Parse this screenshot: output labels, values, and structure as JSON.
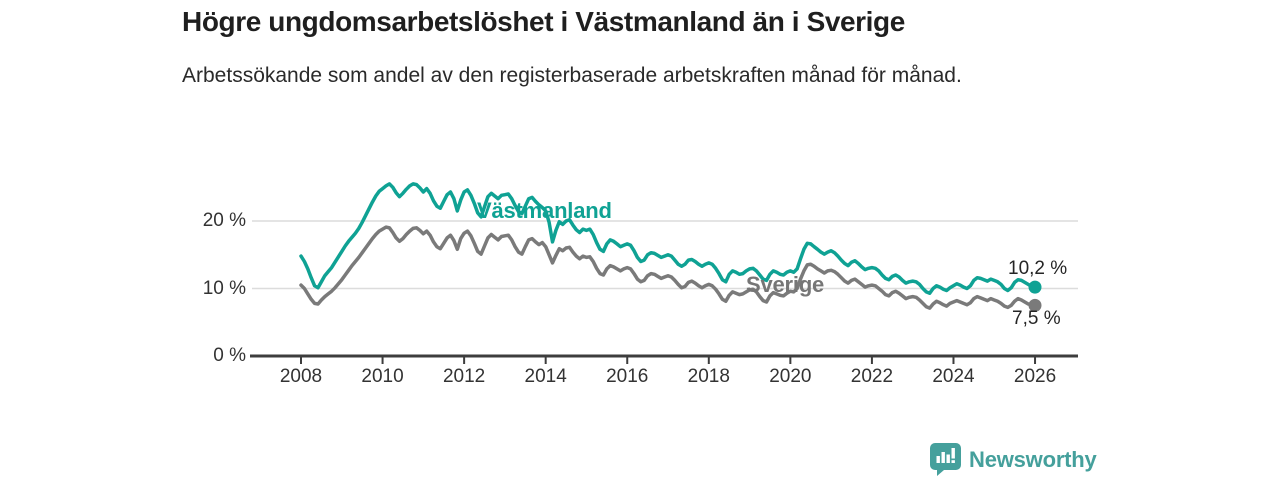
{
  "header": {
    "title": "Högre ungdomsarbetslöshet i Västmanland än i Sverige",
    "subtitle": "Arbetssökande som andel av den registerbaserade arbetskraften månad för månad."
  },
  "chart_data": {
    "type": "line",
    "title": "Högre ungdomsarbetslöshet i Västmanland än i Sverige",
    "xlabel": "",
    "ylabel": "Arbetssökande som andel av den registerbaserade arbetskraften",
    "unit": "%",
    "x_start": "2008-01",
    "x_end": "2026-01",
    "frequency": "monthly",
    "xlim": [
      2008,
      2026
    ],
    "ylim": [
      0,
      27.5
    ],
    "grid": "horizontal",
    "x_ticks": [
      2008,
      2010,
      2012,
      2014,
      2016,
      2018,
      2020,
      2022,
      2024,
      2026
    ],
    "x_tick_labels": [
      "2008",
      "2010",
      "2012",
      "2014",
      "2016",
      "2018",
      "2020",
      "2022",
      "2024",
      "2026"
    ],
    "y_ticks": [
      20,
      10,
      0
    ],
    "y_tick_labels": [
      "20 %",
      "10 %",
      "0 %"
    ],
    "legend_position": "inline-labels",
    "series": [
      {
        "name": "Västmanland",
        "color": "#0fa294",
        "end_value": 10.2,
        "end_label": "10,2 %",
        "values": [
          14.8,
          14.0,
          12.9,
          11.6,
          10.4,
          10.1,
          11.0,
          11.9,
          12.5,
          13.1,
          13.9,
          14.7,
          15.5,
          16.3,
          17.0,
          17.6,
          18.2,
          18.9,
          19.8,
          20.8,
          21.8,
          22.8,
          23.7,
          24.4,
          24.8,
          25.2,
          25.5,
          25.0,
          24.2,
          23.6,
          24.1,
          24.7,
          25.2,
          25.5,
          25.4,
          24.9,
          24.3,
          24.8,
          24.1,
          23.0,
          22.2,
          21.9,
          22.9,
          23.9,
          24.3,
          23.3,
          21.5,
          23.1,
          24.3,
          24.6,
          23.8,
          22.6,
          21.2,
          20.6,
          22.1,
          23.6,
          24.1,
          23.7,
          23.3,
          23.8,
          23.9,
          24.0,
          23.3,
          22.3,
          21.4,
          21.1,
          22.2,
          23.3,
          23.5,
          22.9,
          22.4,
          22.0,
          21.5,
          19.8,
          16.9,
          18.6,
          19.9,
          19.5,
          20.0,
          20.2,
          19.4,
          18.7,
          18.3,
          18.8,
          18.6,
          18.8,
          18.0,
          16.8,
          15.8,
          15.5,
          16.6,
          17.2,
          17.0,
          16.6,
          16.2,
          16.4,
          16.6,
          16.4,
          15.6,
          14.6,
          14.0,
          14.2,
          15.0,
          15.3,
          15.2,
          14.9,
          14.6,
          14.8,
          15.0,
          14.8,
          14.2,
          13.6,
          13.3,
          13.6,
          14.2,
          14.3,
          14.0,
          13.6,
          13.3,
          13.6,
          13.8,
          13.6,
          13.0,
          12.2,
          11.3,
          11.0,
          12.1,
          12.6,
          12.4,
          12.1,
          12.2,
          12.6,
          12.9,
          13.0,
          12.6,
          12.0,
          11.4,
          11.2,
          12.1,
          12.6,
          12.4,
          12.1,
          12.0,
          12.4,
          12.6,
          12.4,
          12.9,
          14.4,
          15.8,
          16.7,
          16.6,
          16.2,
          15.8,
          15.4,
          15.1,
          15.4,
          15.6,
          15.3,
          14.8,
          14.2,
          13.7,
          13.4,
          13.9,
          14.1,
          13.7,
          13.2,
          12.8,
          13.0,
          13.1,
          13.0,
          12.6,
          12.0,
          11.5,
          11.3,
          11.8,
          12.0,
          11.7,
          11.2,
          10.8,
          11.0,
          11.1,
          11.0,
          10.6,
          10.0,
          9.5,
          9.3,
          10.0,
          10.4,
          10.2,
          9.9,
          9.7,
          10.1,
          10.4,
          10.7,
          10.5,
          10.2,
          10.0,
          10.4,
          11.2,
          11.6,
          11.5,
          11.3,
          11.1,
          11.4,
          11.2,
          11.0,
          10.6,
          10.0,
          9.7,
          10.1,
          10.9,
          11.3,
          11.2,
          10.9,
          10.6,
          10.3,
          10.2
        ]
      },
      {
        "name": "Sverige",
        "color": "#7a7a7a",
        "end_value": 7.5,
        "end_label": "7,5 %",
        "values": [
          10.5,
          10.0,
          9.2,
          8.4,
          7.8,
          7.7,
          8.3,
          8.8,
          9.2,
          9.6,
          10.1,
          10.7,
          11.3,
          12.0,
          12.7,
          13.4,
          14.0,
          14.6,
          15.3,
          16.0,
          16.7,
          17.4,
          18.0,
          18.5,
          18.8,
          19.1,
          19.0,
          18.3,
          17.5,
          17.0,
          17.4,
          18.0,
          18.5,
          18.9,
          19.0,
          18.6,
          18.1,
          18.5,
          17.9,
          16.9,
          16.2,
          15.9,
          16.7,
          17.5,
          17.9,
          17.1,
          15.8,
          17.4,
          18.2,
          18.5,
          17.8,
          16.7,
          15.5,
          15.1,
          16.3,
          17.5,
          18.0,
          17.6,
          17.2,
          17.7,
          17.8,
          17.9,
          17.2,
          16.2,
          15.4,
          15.1,
          16.2,
          17.2,
          17.4,
          16.9,
          16.5,
          16.8,
          16.2,
          15.0,
          13.8,
          14.9,
          15.9,
          15.6,
          16.0,
          16.1,
          15.4,
          14.8,
          14.4,
          14.8,
          14.6,
          14.7,
          14.0,
          13.0,
          12.2,
          12.0,
          12.9,
          13.4,
          13.2,
          12.9,
          12.6,
          12.9,
          13.1,
          12.9,
          12.2,
          11.4,
          11.0,
          11.2,
          11.9,
          12.2,
          12.1,
          11.8,
          11.5,
          11.7,
          11.9,
          11.7,
          11.2,
          10.6,
          10.1,
          10.3,
          10.9,
          11.1,
          10.8,
          10.4,
          10.1,
          10.4,
          10.6,
          10.4,
          9.9,
          9.2,
          8.4,
          8.1,
          9.0,
          9.5,
          9.3,
          9.1,
          9.2,
          9.5,
          9.8,
          9.9,
          9.5,
          8.8,
          8.2,
          8.0,
          8.9,
          9.4,
          9.2,
          9.0,
          8.9,
          9.3,
          9.6,
          9.5,
          10.0,
          11.4,
          12.6,
          13.5,
          13.6,
          13.3,
          12.9,
          12.6,
          12.3,
          12.6,
          12.7,
          12.5,
          12.1,
          11.6,
          11.1,
          10.8,
          11.2,
          11.4,
          11.0,
          10.6,
          10.2,
          10.4,
          10.5,
          10.4,
          10.0,
          9.6,
          9.1,
          8.9,
          9.4,
          9.6,
          9.3,
          8.9,
          8.5,
          8.7,
          8.8,
          8.7,
          8.3,
          7.8,
          7.3,
          7.1,
          7.7,
          8.1,
          7.9,
          7.6,
          7.4,
          7.8,
          8.0,
          8.2,
          8.0,
          7.8,
          7.6,
          7.9,
          8.5,
          8.8,
          8.6,
          8.4,
          8.2,
          8.5,
          8.3,
          8.1,
          7.8,
          7.4,
          7.2,
          7.5,
          8.1,
          8.5,
          8.3,
          8.0,
          7.7,
          7.6,
          7.5
        ]
      }
    ],
    "colors": {
      "vastmanland": "#0fa294",
      "sverige": "#7a7a7a",
      "gridline": "#dcdcdc",
      "axis": "#3d3d3d",
      "text": "#333333"
    }
  },
  "footer": {
    "brand": "Newsworthy",
    "brand_color": "#45a09c"
  }
}
